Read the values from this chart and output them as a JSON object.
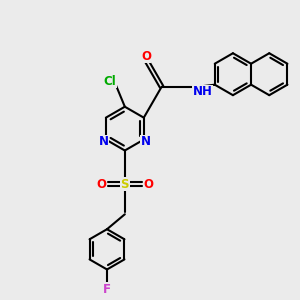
{
  "background_color": "#ebebeb",
  "bond_color": "#000000",
  "bond_width": 1.5,
  "atom_colors": {
    "N": "#0000ee",
    "O": "#ff0000",
    "Cl": "#00aa00",
    "F": "#cc44cc",
    "S": "#cccc00",
    "NH": "#0000ee",
    "C": "#000000"
  },
  "font_size": 8.5
}
